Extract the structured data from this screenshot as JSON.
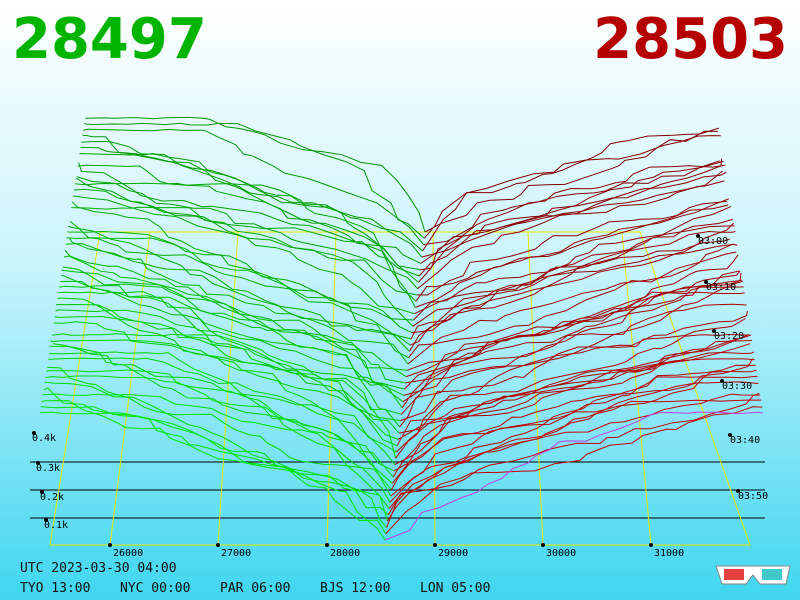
{
  "header": {
    "bid": "28497",
    "ask": "28503"
  },
  "price_labels": [
    "26000",
    "27000",
    "28000",
    "29000",
    "30000",
    "31000"
  ],
  "depth_labels": [
    "0.1k",
    "0.2k",
    "0.3k",
    "0.4k"
  ],
  "time_labels": [
    "03:00",
    "03:10",
    "03:20",
    "03:30",
    "03:40",
    "03:50"
  ],
  "footer": {
    "utc": "UTC 2023-03-30 04:00",
    "clocks": [
      "TYO 13:00",
      "NYC 00:00",
      "PAR 06:00",
      "BJS 12:00",
      "LON 05:00"
    ]
  }
}
